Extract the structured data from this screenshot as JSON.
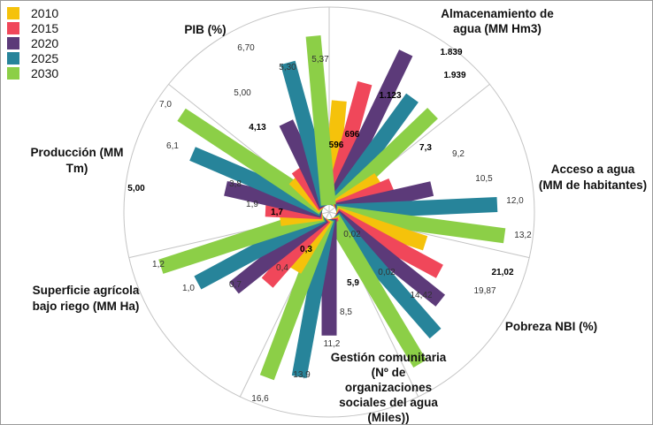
{
  "chart_data": {
    "type": "bar",
    "subtype": "polar-radial-bar",
    "grid": true,
    "legend_position": "top-left",
    "series": [
      {
        "name": "2010",
        "color": "#F5C20B"
      },
      {
        "name": "2015",
        "color": "#F0475A"
      },
      {
        "name": "2020",
        "color": "#5C3A79"
      },
      {
        "name": "2025",
        "color": "#27849A"
      },
      {
        "name": "2030",
        "color": "#8CCF47"
      }
    ],
    "categories": [
      {
        "label": [
          "PIB  (%)"
        ],
        "values": [
          4.13,
          5.0,
          6.7,
          5.3,
          5.37
        ],
        "labels": [
          "4,13",
          "5,00",
          "6,70",
          "5,30",
          "5,37"
        ],
        "bold": [
          true,
          false,
          false,
          false,
          false
        ]
      },
      {
        "label": [
          "Almacenamiento de",
          "agua (MM Hm3)"
        ],
        "values": [
          596,
          696,
          1123,
          1839,
          1939
        ],
        "labels": [
          "596",
          "696",
          "1.123",
          "1.839",
          "1.939"
        ],
        "bold": [
          true,
          true,
          true,
          true,
          true
        ]
      },
      {
        "label": [
          "Acceso a agua",
          "(MM de habitantes)"
        ],
        "values": [
          7.3,
          9.2,
          10.5,
          12.0,
          13.2
        ],
        "labels": [
          "7,3",
          "9,2",
          "10,5",
          "12,0",
          "13,2"
        ],
        "bold": [
          true,
          false,
          false,
          false,
          false
        ]
      },
      {
        "label": [
          "Pobreza NBI (%)"
        ],
        "values": [
          0.02,
          0.02,
          14.42,
          19.87,
          21.02
        ],
        "labels": [
          "0,02",
          "0,02",
          "14,42",
          "19,87",
          "21,02"
        ],
        "bold": [
          false,
          false,
          false,
          false,
          true
        ]
      },
      {
        "label": [
          "Gestión comunitaria",
          "(Nº de",
          "organizaciones",
          "sociales del agua",
          "(Miles))"
        ],
        "values": [
          5.9,
          8.5,
          11.2,
          13.9,
          16.6
        ],
        "labels": [
          "5,9",
          "8,5",
          "11,2",
          "13,9",
          "16,6"
        ],
        "bold": [
          true,
          false,
          false,
          false,
          false
        ]
      },
      {
        "label": [
          "Superficie agrícola",
          "bajo riego (MM Ha)"
        ],
        "values": [
          0.3,
          0.4,
          0.7,
          1.0,
          1.2
        ],
        "labels": [
          "0,3",
          "0,4",
          "0,7",
          "1,0",
          "1,2"
        ],
        "bold": [
          true,
          false,
          false,
          false,
          false
        ]
      },
      {
        "label": [
          "Producción  (MM",
          "Tm)"
        ],
        "extra_label": "5,00",
        "values": [
          1.7,
          1.9,
          3.8,
          6.1,
          7.0
        ],
        "labels": [
          "1,7",
          "1,9",
          "3,8",
          "6,1",
          "7,0"
        ],
        "bold": [
          true,
          false,
          false,
          false,
          false
        ]
      }
    ]
  }
}
